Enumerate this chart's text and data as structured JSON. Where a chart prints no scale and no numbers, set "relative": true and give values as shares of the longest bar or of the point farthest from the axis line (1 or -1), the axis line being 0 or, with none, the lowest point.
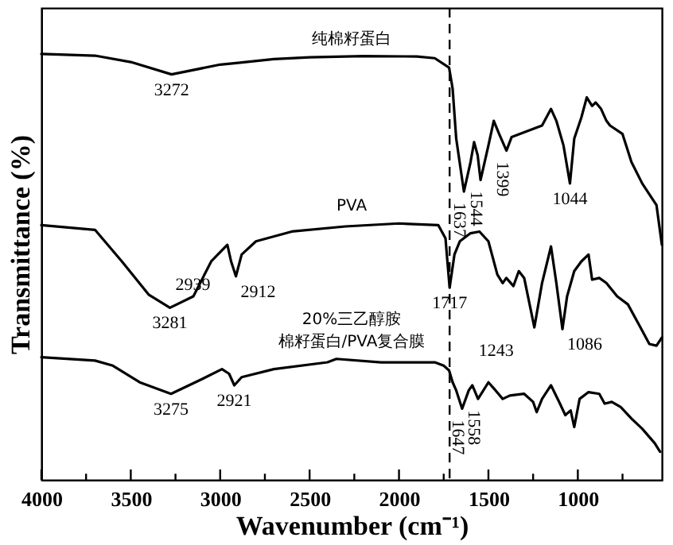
{
  "chart_data": {
    "type": "line",
    "relative": true,
    "xlabel": "Wavenumber (cm⁻¹)",
    "ylabel": "Transmittance (%)",
    "xlim": [
      4000,
      530
    ],
    "xticks": [
      4000,
      {
        "value": 3750,
        "label": null
      },
      3500,
      {
        "value": 3250,
        "label": null
      },
      3000,
      {
        "value": 2750,
        "label": null
      },
      2500,
      {
        "value": 2250,
        "label": null
      },
      2000,
      {
        "value": 1750,
        "label": null
      },
      1500,
      {
        "value": 1250,
        "label": null
      },
      1000,
      {
        "value": 750,
        "label": null
      }
    ],
    "tick_labels": "x",
    "grid": false,
    "marker": "none",
    "line_style": "solid",
    "series": [
      {
        "name": "纯棉籽蛋白",
        "color": "#000000",
        "x": [
          4000,
          3700,
          3500,
          3272,
          3000,
          2900,
          2700,
          2500,
          2200,
          1900,
          1800,
          1720,
          1700,
          1680,
          1637,
          1600,
          1580,
          1560,
          1544,
          1500,
          1470,
          1440,
          1399,
          1370,
          1300,
          1250,
          1200,
          1150,
          1120,
          1080,
          1044,
          1020,
          980,
          950,
          920,
          900,
          870,
          840,
          820,
          750,
          700,
          640,
          560,
          530
        ],
        "values": [
          1.0,
          0.996,
          0.981,
          0.952,
          0.975,
          0.979,
          0.988,
          0.992,
          0.995,
          0.994,
          0.99,
          0.968,
          0.918,
          0.801,
          0.677,
          0.746,
          0.793,
          0.762,
          0.704,
          0.785,
          0.843,
          0.812,
          0.773,
          0.805,
          0.816,
          0.824,
          0.832,
          0.871,
          0.843,
          0.785,
          0.696,
          0.801,
          0.851,
          0.898,
          0.878,
          0.886,
          0.871,
          0.843,
          0.832,
          0.812,
          0.746,
          0.696,
          0.645,
          0.552
        ]
      },
      {
        "name": "PVA",
        "color": "#000000",
        "x": [
          4000,
          3700,
          3550,
          3400,
          3281,
          3150,
          3050,
          2960,
          2939,
          2912,
          2880,
          2800,
          2600,
          2300,
          2000,
          1780,
          1740,
          1717,
          1690,
          1660,
          1600,
          1550,
          1500,
          1450,
          1420,
          1400,
          1360,
          1330,
          1300,
          1243,
          1200,
          1150,
          1120,
          1086,
          1060,
          1020,
          980,
          940,
          920,
          880,
          840,
          780,
          720,
          650,
          600,
          560,
          530
        ],
        "values": [
          0.598,
          0.587,
          0.513,
          0.435,
          0.404,
          0.431,
          0.513,
          0.552,
          0.513,
          0.478,
          0.529,
          0.56,
          0.583,
          0.595,
          0.602,
          0.598,
          0.567,
          0.451,
          0.529,
          0.56,
          0.579,
          0.583,
          0.56,
          0.482,
          0.462,
          0.474,
          0.455,
          0.49,
          0.474,
          0.358,
          0.462,
          0.548,
          0.462,
          0.354,
          0.431,
          0.49,
          0.513,
          0.529,
          0.47,
          0.474,
          0.462,
          0.431,
          0.412,
          0.358,
          0.319,
          0.315,
          0.334
        ]
      },
      {
        "name": "20%三乙醇胺棉籽蛋白/PVA复合膜",
        "color": "#000000",
        "x": [
          4000,
          3700,
          3600,
          3450,
          3275,
          3100,
          2990,
          2950,
          2921,
          2880,
          2700,
          2400,
          2350,
          2100,
          1800,
          1750,
          1720,
          1700,
          1680,
          1647,
          1610,
          1590,
          1558,
          1500,
          1460,
          1420,
          1380,
          1300,
          1250,
          1230,
          1200,
          1150,
          1100,
          1070,
          1040,
          1020,
          990,
          940,
          880,
          850,
          810,
          760,
          700,
          640,
          570,
          540
        ],
        "values": [
          0.288,
          0.28,
          0.268,
          0.229,
          0.202,
          0.237,
          0.26,
          0.249,
          0.222,
          0.241,
          0.26,
          0.276,
          0.284,
          0.276,
          0.276,
          0.268,
          0.257,
          0.229,
          0.21,
          0.167,
          0.21,
          0.222,
          0.19,
          0.229,
          0.21,
          0.19,
          0.198,
          0.202,
          0.183,
          0.159,
          0.19,
          0.222,
          0.179,
          0.152,
          0.163,
          0.124,
          0.19,
          0.206,
          0.202,
          0.179,
          0.183,
          0.171,
          0.144,
          0.12,
          0.086,
          0.066
        ]
      }
    ],
    "ref_lines": [
      {
        "axis": "x",
        "value": 1717,
        "line_style": "dashed",
        "color": "#000000"
      }
    ],
    "annotations": [
      {
        "text": "3272",
        "x": 3272,
        "y": 0.952
      },
      {
        "text": "1637",
        "x": 1637,
        "y": 0.677
      },
      {
        "text": "1544",
        "x": 1544,
        "y": 0.704
      },
      {
        "text": "1399",
        "x": 1399,
        "y": 0.773
      },
      {
        "text": "1044",
        "x": 1044,
        "y": 0.696
      },
      {
        "text": "3281",
        "x": 3281,
        "y": 0.404
      },
      {
        "text": "2939",
        "x": 2939,
        "y": 0.513
      },
      {
        "text": "2912",
        "x": 2912,
        "y": 0.478
      },
      {
        "text": "1717",
        "x": 1717,
        "y": 0.451
      },
      {
        "text": "1243",
        "x": 1243,
        "y": 0.358
      },
      {
        "text": "1086",
        "x": 1086,
        "y": 0.354
      },
      {
        "text": "3275",
        "x": 3275,
        "y": 0.202
      },
      {
        "text": "2921",
        "x": 2921,
        "y": 0.222
      },
      {
        "text": "1647",
        "x": 1647,
        "y": 0.167
      },
      {
        "text": "1558",
        "x": 1558,
        "y": 0.19
      }
    ]
  }
}
